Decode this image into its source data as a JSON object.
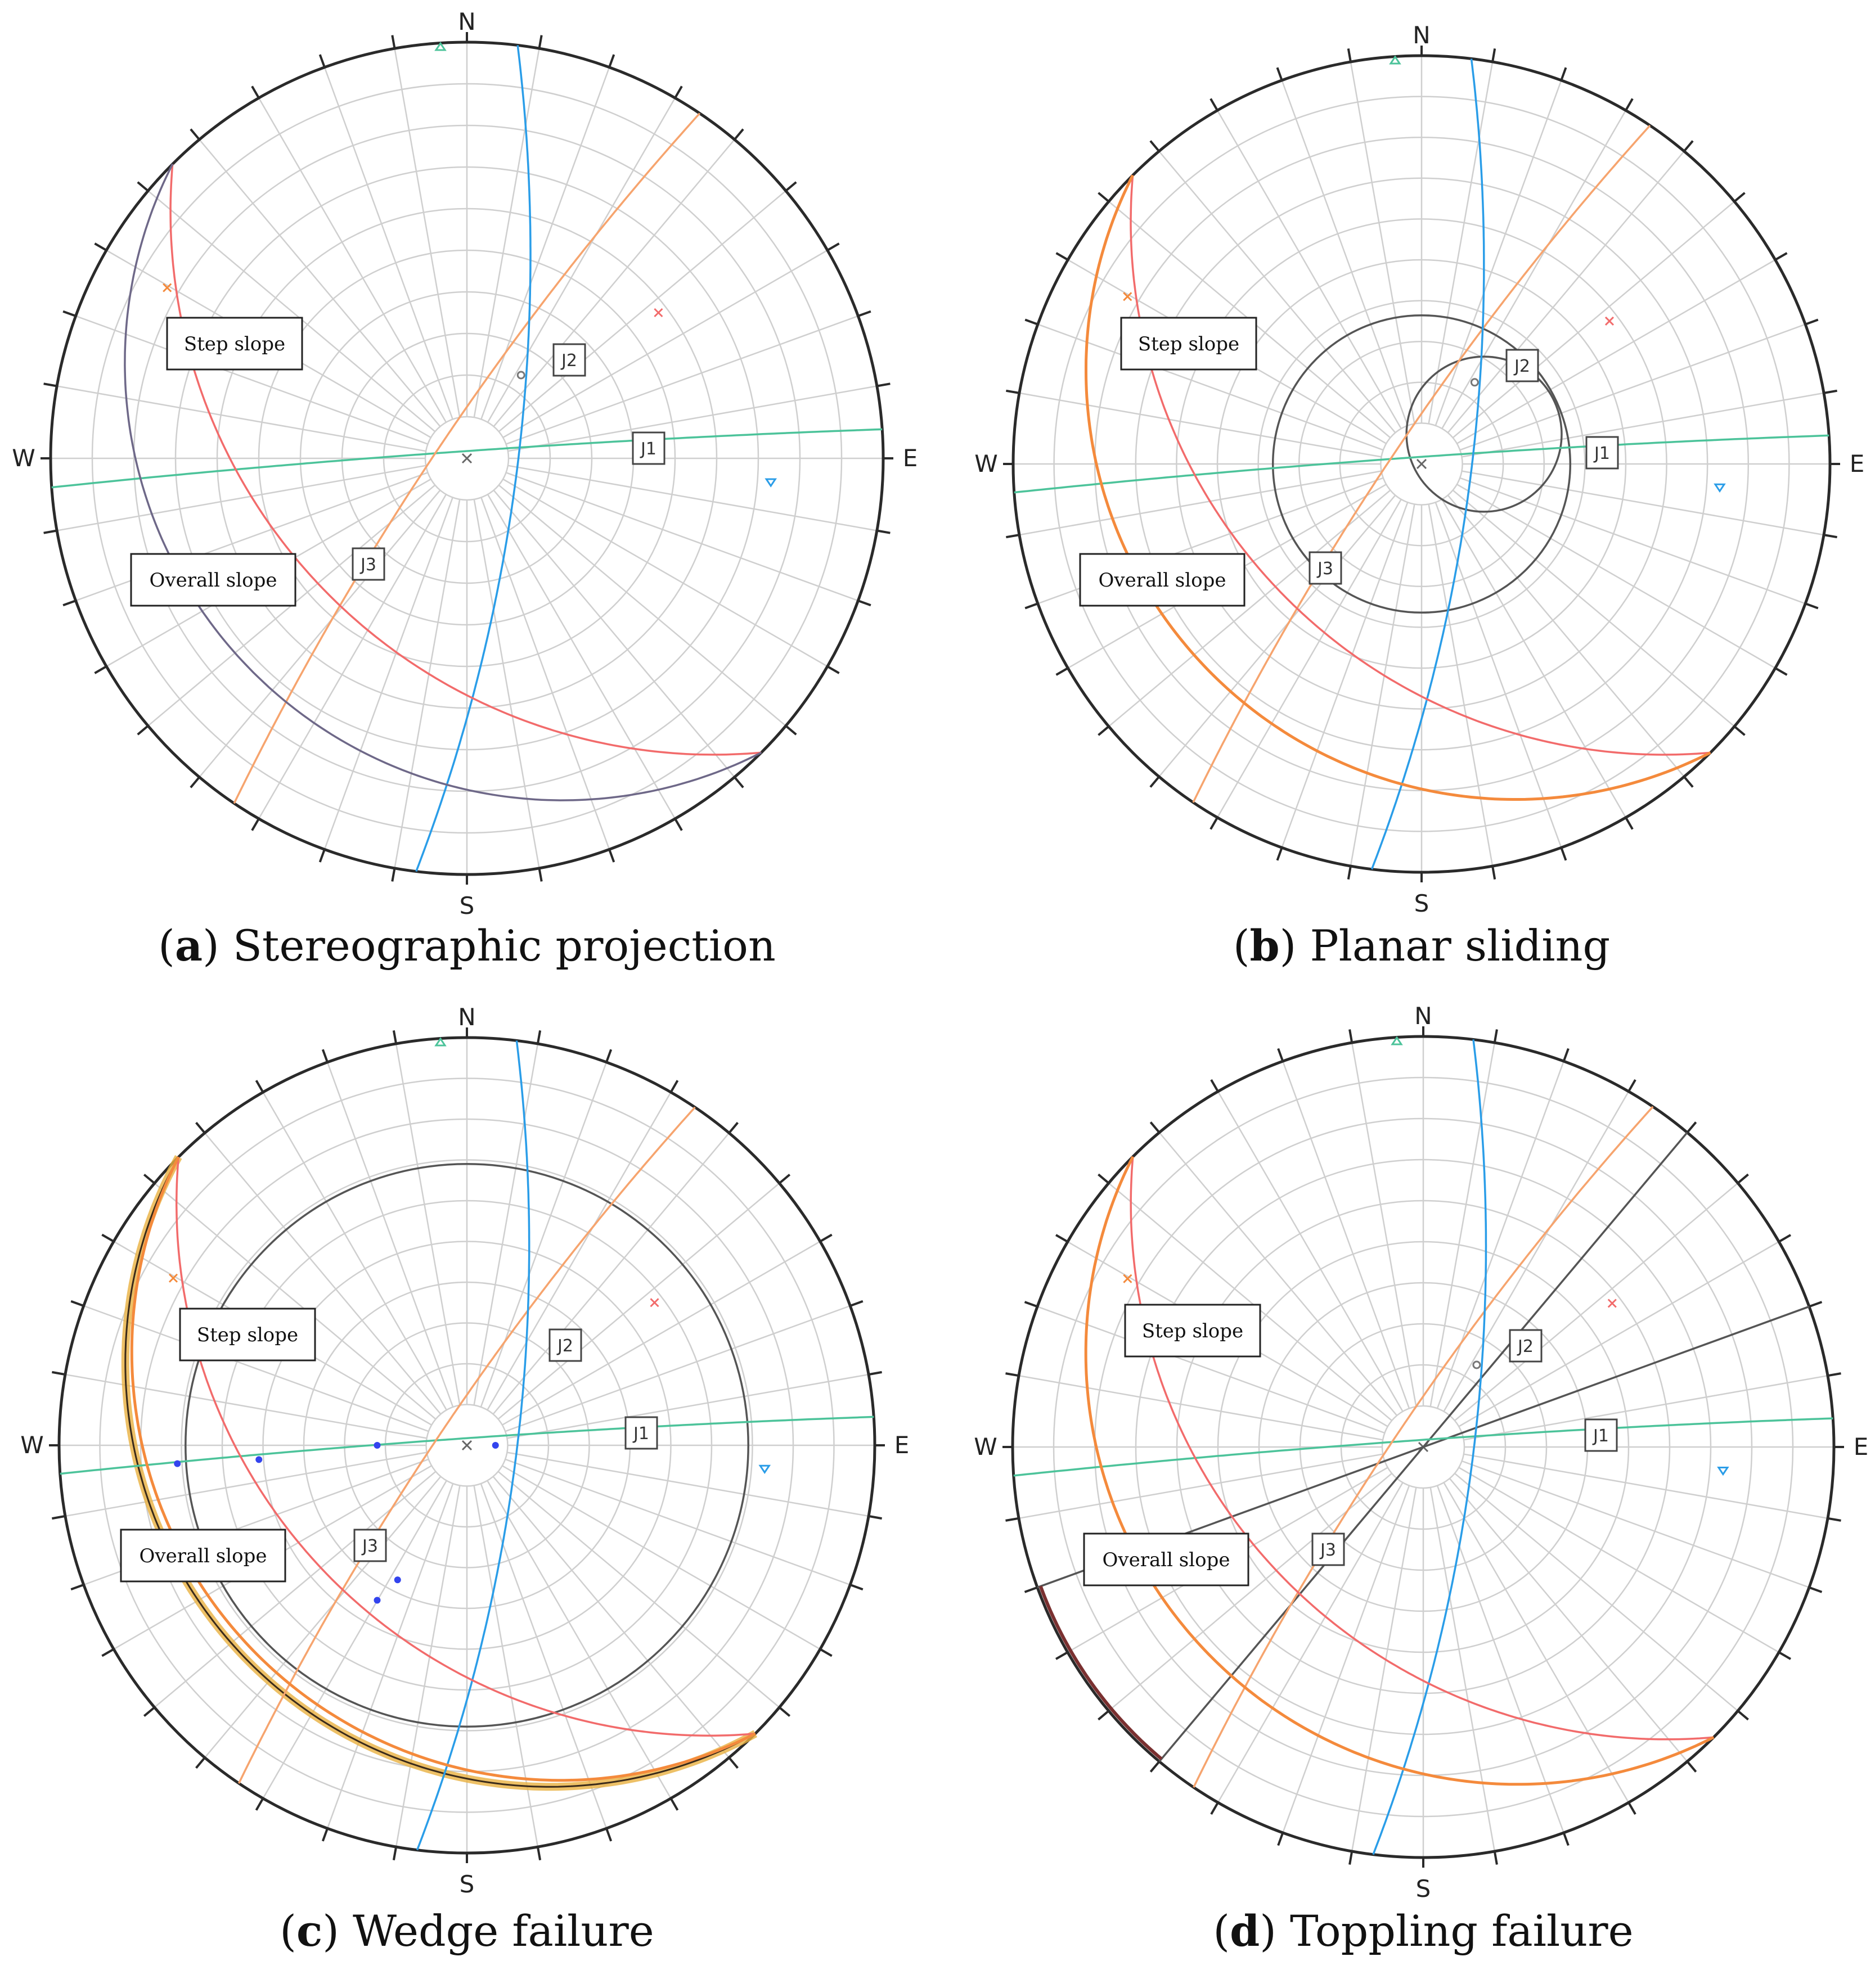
{
  "colors": {
    "grid": "#cfcfcf",
    "outline": "#2a2a2a",
    "step_slope": "#f26b6b",
    "overall_slope_a": "#6e6888",
    "overall_slope": "#f48a3c",
    "j1": "#4cc39a",
    "j2": "#f6a46e",
    "j3": "#2a9de8",
    "envelope": "#555555",
    "pole_j1": "#4cc39a",
    "pole_j3": "#2a9de8",
    "pole_step": "#f26b6b",
    "pole_overall": "#f48a3c",
    "intersection": "#3344ee",
    "wedge_fill": "#e8b040"
  },
  "compass": {
    "n": "N",
    "e": "E",
    "s": "S",
    "w": "W"
  },
  "labels": {
    "step_slope": "Step slope",
    "overall_slope": "Overall slope",
    "j1": "J1",
    "j2": "J2",
    "j3": "J3"
  },
  "panels": [
    {
      "letter": "a",
      "caption": "Stereographic projection",
      "variant": "projection"
    },
    {
      "letter": "b",
      "caption": "Planar sliding",
      "variant": "planar"
    },
    {
      "letter": "c",
      "caption": "Wedge failure",
      "variant": "wedge"
    },
    {
      "letter": "d",
      "caption": "Toppling failure",
      "variant": "toppling"
    }
  ]
}
